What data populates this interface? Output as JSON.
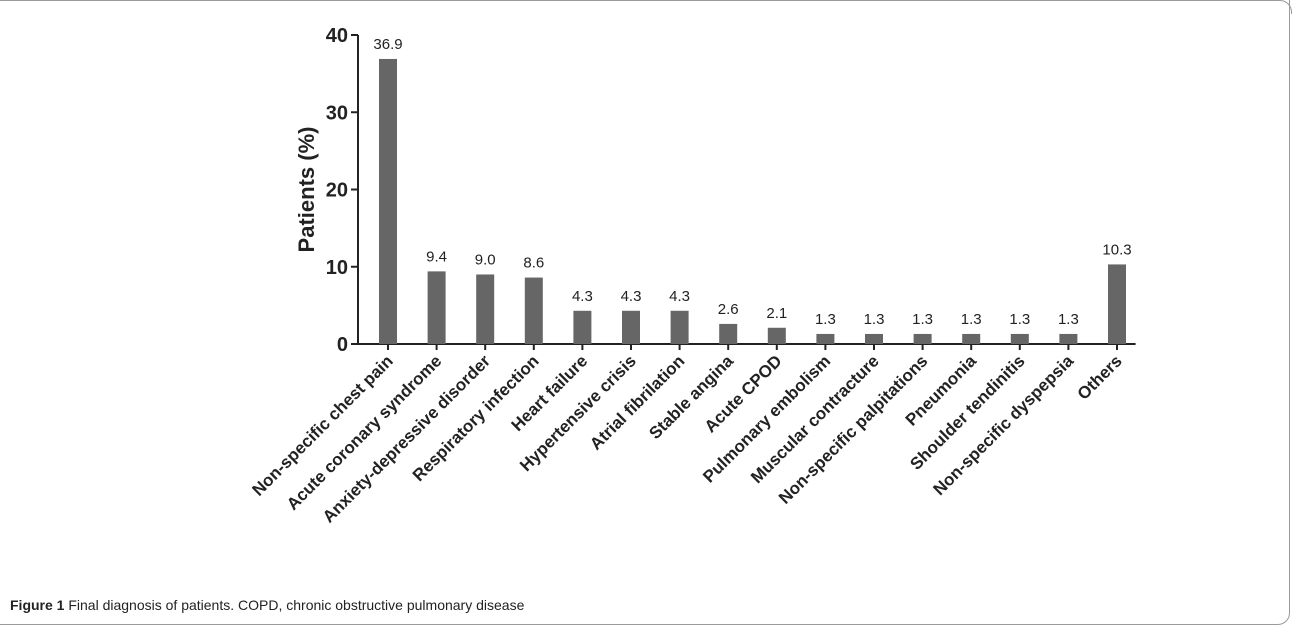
{
  "chart_data": {
    "type": "bar",
    "title": "",
    "xlabel": "",
    "ylabel": "Patients (%)",
    "ylim": [
      0,
      40
    ],
    "yticks": [
      0,
      10,
      20,
      30,
      40
    ],
    "categories": [
      "Non-specific chest pain",
      "Acute coronary syndrome",
      "Anxiety-depressive disorder",
      "Respiratory infection",
      "Heart failure",
      "Hypertensive crisis",
      "Atrial fibrilation",
      "Stable angina",
      "Acute CPOD",
      "Pulmonary embolism",
      "Muscular contracture",
      "Non-specific palpitations",
      "Pneumonia",
      "Shoulder tendinitis",
      "Non-specific dyspepsia",
      "Others"
    ],
    "values": [
      36.9,
      9.4,
      9.0,
      8.6,
      4.3,
      4.3,
      4.3,
      2.6,
      2.1,
      1.3,
      1.3,
      1.3,
      1.3,
      1.3,
      1.3,
      10.3
    ],
    "value_labels": [
      "36.9",
      "9.4",
      "9.0",
      "8.6",
      "4.3",
      "4.3",
      "4.3",
      "2.6",
      "2.1",
      "1.3",
      "1.3",
      "1.3",
      "1.3",
      "1.3",
      "1.3",
      "10.3"
    ],
    "bar_color": "#666666",
    "grid": false,
    "legend": "none"
  },
  "caption": {
    "label": "Figure 1",
    "text": " Final diagnosis of patients. COPD, chronic obstructive pulmonary disease"
  }
}
